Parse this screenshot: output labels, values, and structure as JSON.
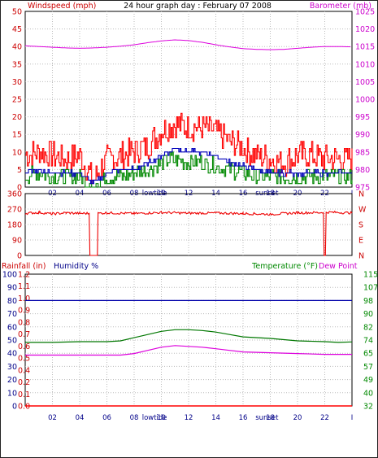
{
  "chart_data": [
    {
      "type": "line",
      "title": "24 hour graph day : February 07 2008",
      "left_axis_label": "Windspeed (mph)",
      "right_axis_label": "Barometer (mb)",
      "left_ylim": [
        0,
        50
      ],
      "left_ticks": [
        "0",
        "5",
        "10",
        "15",
        "20",
        "25",
        "30",
        "35",
        "40",
        "45",
        "50"
      ],
      "right_ylim": [
        975,
        1025
      ],
      "right_ticks": [
        "975",
        "980",
        "985",
        "990",
        "995",
        "1000",
        "1005",
        "1010",
        "1015",
        "1020",
        "1025"
      ],
      "xlim": [
        0,
        24
      ],
      "x_ticks": [
        "02",
        "04",
        "06",
        "08",
        "10",
        "12",
        "14",
        "16",
        "18",
        "20",
        "22",
        "I"
      ],
      "x_tick_positions": [
        2,
        4,
        6,
        8,
        10,
        12,
        14,
        16,
        18,
        20,
        22,
        24
      ],
      "events": [
        {
          "label": "lowtide",
          "x": 9.5
        },
        {
          "label": "sunset",
          "x": 17.75
        }
      ],
      "colors": {
        "windspeed": "#ff0000",
        "wind_average": "#0000bb",
        "wind_lull": "#008800",
        "barometer": "#dd00dd",
        "left_axis": "#cc0000",
        "right_axis": "#cc00cc"
      },
      "series": [
        {
          "name": "Barometer (mb)",
          "axis": "right",
          "x": [
            0,
            1,
            2,
            3,
            4,
            5,
            6,
            7,
            8,
            9,
            10,
            11,
            12,
            13,
            14,
            15,
            16,
            17,
            18,
            19,
            20,
            21,
            22,
            23,
            24
          ],
          "values": [
            1015.2,
            1015.0,
            1014.8,
            1014.6,
            1014.5,
            1014.6,
            1014.8,
            1015.1,
            1015.5,
            1016.1,
            1016.6,
            1016.9,
            1016.7,
            1016.2,
            1015.5,
            1014.9,
            1014.4,
            1014.2,
            1014.1,
            1014.2,
            1014.5,
            1014.8,
            1015.0,
            1015.0,
            1014.9
          ]
        },
        {
          "axis": "left",
          "x": [
            0,
            1,
            2,
            3,
            4,
            5,
            6,
            7,
            8,
            9,
            10,
            11,
            12,
            13,
            14,
            15,
            16,
            17,
            18,
            19,
            20,
            21,
            22,
            23,
            24
          ],
          "values": [
            9,
            10,
            9,
            8,
            9,
            2,
            8,
            9,
            10,
            12,
            16,
            18,
            17,
            17,
            16,
            13,
            11,
            9,
            8,
            7,
            9,
            9,
            8,
            8,
            8
          ]
        },
        {
          "axis": "left",
          "x": [
            0,
            1,
            2,
            3,
            4,
            5,
            6,
            7,
            8,
            9,
            10,
            11,
            12,
            13,
            14,
            15,
            16,
            17,
            18,
            19,
            20,
            21,
            22,
            23,
            24
          ],
          "values": [
            4,
            5,
            4,
            4,
            4,
            1,
            4,
            5,
            5,
            7,
            9,
            11,
            10,
            10,
            9,
            7,
            6,
            5,
            4,
            4,
            4,
            4,
            4,
            4,
            4
          ]
        },
        {
          "axis": "left",
          "x": [
            0,
            1,
            2,
            3,
            4,
            5,
            6,
            7,
            8,
            9,
            10,
            11,
            12,
            13,
            14,
            15,
            16,
            17,
            18,
            19,
            20,
            21,
            22,
            23,
            24
          ],
          "values": [
            3,
            4,
            3,
            3,
            3,
            0,
            3,
            3,
            4,
            5,
            7,
            8,
            7,
            7,
            6,
            5,
            4,
            3,
            3,
            3,
            3,
            3,
            3,
            3,
            3
          ]
        }
      ]
    },
    {
      "type": "line",
      "ylim": [
        0,
        360
      ],
      "left_ticks": [
        "0",
        "90",
        "180",
        "270",
        "360"
      ],
      "right_ticks": [
        "N",
        "W",
        "S",
        "E",
        "N"
      ],
      "xlim": [
        0,
        24
      ],
      "series": [
        {
          "axis": "left",
          "x": [
            0,
            1,
            2,
            3,
            4,
            4.7,
            4.75,
            5.3,
            5.35,
            6,
            8,
            10,
            12,
            14,
            16,
            18,
            20,
            21.9,
            21.95,
            22.05,
            22.1,
            24
          ],
          "values": [
            245,
            250,
            242,
            248,
            245,
            245,
            0,
            0,
            245,
            248,
            244,
            250,
            246,
            247,
            244,
            240,
            248,
            250,
            0,
            0,
            252,
            248
          ]
        }
      ]
    },
    {
      "type": "line",
      "left_axis_label": "Rainfall (in)",
      "left2_axis_label": "Humidity %",
      "right_axis_label": "Temperature (°F)",
      "right2_axis_label": "Dew Point",
      "rain_ylim": [
        0,
        1.2
      ],
      "rain_ticks": [
        "0.0",
        "0.1",
        "0.2",
        "0.4",
        "0.5",
        "0.6",
        "0.7",
        "0.8",
        "0.9",
        "1.0",
        "1.1",
        "1.2"
      ],
      "humidity_ylim": [
        0,
        100
      ],
      "humidity_ticks": [
        "0",
        "10",
        "20",
        "30",
        "40",
        "50",
        "60",
        "70",
        "80",
        "90",
        "100"
      ],
      "temp_ylim": [
        32,
        115
      ],
      "temp_ticks": [
        "32",
        "40",
        "49",
        "57",
        "65",
        "74",
        "82",
        "90",
        "98",
        "107",
        "115"
      ],
      "xlim": [
        0,
        24
      ],
      "colors": {
        "humidity": "#0000aa",
        "temperature": "#007700",
        "dew_point": "#dd00dd",
        "rainfall": "#ff0000"
      },
      "series": [
        {
          "axis": "humidity",
          "x": [
            0,
            24
          ],
          "values": [
            80,
            80
          ]
        },
        {
          "axis": "temp",
          "x": [
            0,
            2,
            4,
            6,
            7,
            8,
            9,
            10,
            11,
            12,
            13,
            14,
            15,
            16,
            18,
            20,
            22,
            23,
            24
          ],
          "values": [
            72,
            72,
            72.5,
            72.5,
            73,
            75,
            77,
            79,
            80,
            80,
            79.5,
            78.5,
            77,
            75.5,
            74.5,
            73,
            72.5,
            72,
            72.3
          ]
        },
        {
          "axis": "temp",
          "x": [
            0,
            2,
            4,
            6,
            7,
            8,
            9,
            10,
            11,
            12,
            13,
            14,
            15,
            16,
            18,
            20,
            22,
            23,
            24
          ],
          "values": [
            64,
            64,
            64,
            64,
            64,
            65,
            67,
            69,
            70,
            69.5,
            69,
            68,
            67,
            66,
            65.5,
            65,
            64.5,
            64.5,
            64.5
          ]
        },
        {
          "axis": "rain",
          "x": [
            0,
            24
          ],
          "values": [
            0,
            0
          ]
        }
      ],
      "x_ticks": [
        "02",
        "04",
        "06",
        "08",
        "10",
        "12",
        "14",
        "16",
        "18",
        "20",
        "22",
        "I"
      ],
      "events": [
        {
          "label": "lowtide",
          "x": 9.5
        },
        {
          "label": "sunset",
          "x": 17.75
        }
      ]
    }
  ]
}
